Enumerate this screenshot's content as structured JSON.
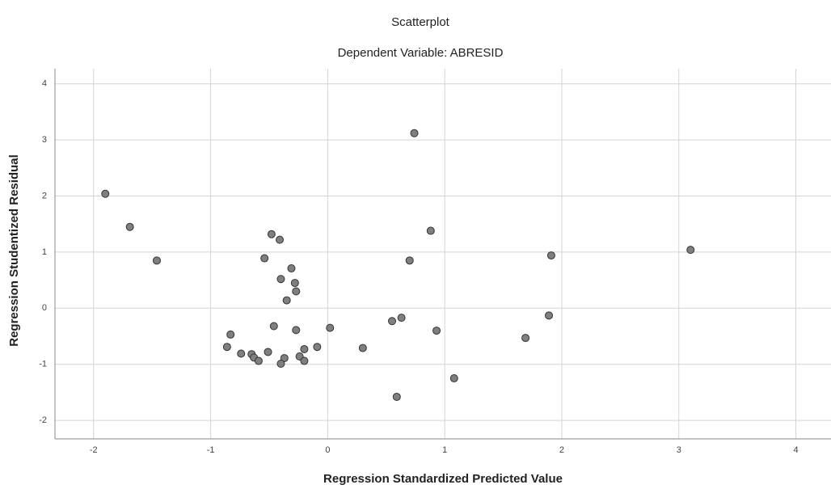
{
  "chart_data": {
    "type": "scatter",
    "title": "Scatterplot",
    "subtitle": "Dependent Variable: ABRESID",
    "x_label": "Regression Standardized Predicted Value",
    "y_label": "Regression Studentized Residual",
    "color": "#7f7f7f",
    "grid": true,
    "xlim": [
      -2.33,
      4.3
    ],
    "ylim": [
      -2.33,
      4.27
    ],
    "xticks": [
      -2,
      -1,
      0,
      1,
      2,
      3,
      4
    ],
    "yticks": [
      -2,
      -1,
      0,
      1,
      2,
      3,
      4
    ],
    "x": [
      -1.9,
      -1.69,
      -1.46,
      -0.48,
      -0.41,
      -0.54,
      -0.31,
      -0.4,
      -0.28,
      -0.27,
      -0.35,
      -0.46,
      -0.27,
      0.02,
      -0.83,
      -0.86,
      -0.74,
      -0.65,
      -0.51,
      -0.63,
      -0.59,
      -0.37,
      -0.4,
      -0.24,
      -0.2,
      -0.2,
      -0.09,
      0.3,
      0.55,
      0.63,
      0.93,
      0.7,
      0.88,
      0.74,
      0.59,
      1.08,
      1.69,
      1.91,
      1.89,
      3.1
    ],
    "values": [
      2.04,
      1.45,
      0.85,
      1.32,
      1.22,
      0.89,
      0.71,
      0.52,
      0.45,
      0.3,
      0.14,
      -0.32,
      -0.39,
      -0.35,
      -0.47,
      -0.69,
      -0.81,
      -0.82,
      -0.78,
      -0.88,
      -0.94,
      -0.89,
      -0.99,
      -0.86,
      -0.94,
      -0.73,
      -0.69,
      -0.71,
      -0.23,
      -0.17,
      -0.4,
      0.85,
      1.38,
      3.12,
      -1.58,
      -1.25,
      -0.53,
      0.94,
      -0.13,
      1.04
    ]
  }
}
